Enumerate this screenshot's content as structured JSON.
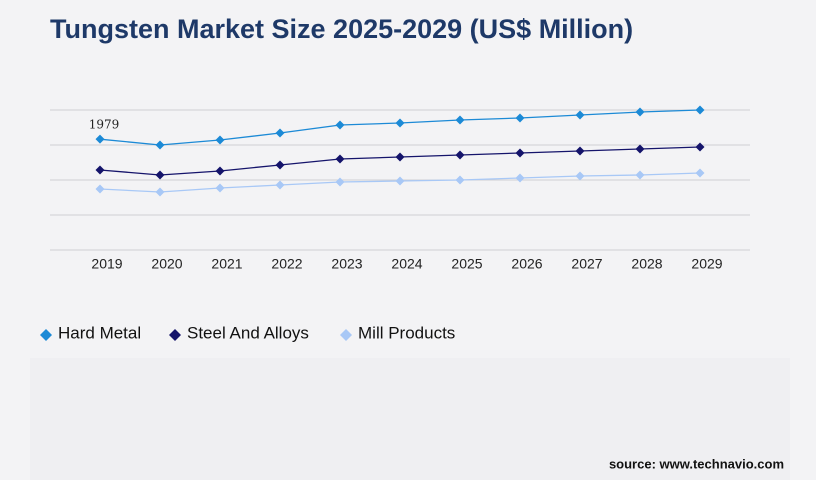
{
  "chart_data": {
    "type": "line",
    "title": "Tungsten Market Size 2025-2029 (US$ Million)",
    "categories": [
      "2019",
      "2020",
      "2021",
      "2022",
      "2023",
      "2024",
      "2025",
      "2026",
      "2027",
      "2028",
      "2029"
    ],
    "series": [
      {
        "name": "Hard Metal",
        "color": "#1c8ad6",
        "values": [
          1979,
          1875,
          1964,
          2089,
          2232,
          2268,
          2321,
          2357,
          2411,
          2464,
          2500
        ]
      },
      {
        "name": "Steel And Alloys",
        "color": "#15146b",
        "values": [
          1429,
          1339,
          1411,
          1518,
          1625,
          1661,
          1696,
          1732,
          1768,
          1804,
          1839
        ]
      },
      {
        "name": "Mill Products",
        "color": "#a8c8f6",
        "values": [
          1089,
          1036,
          1107,
          1161,
          1214,
          1232,
          1250,
          1286,
          1321,
          1339,
          1375
        ]
      }
    ],
    "ylim": [
      0,
      2500
    ],
    "yticks": [
      0,
      625,
      1250,
      1875,
      2500
    ],
    "grid": true,
    "source": "source: www.technavio.com"
  }
}
